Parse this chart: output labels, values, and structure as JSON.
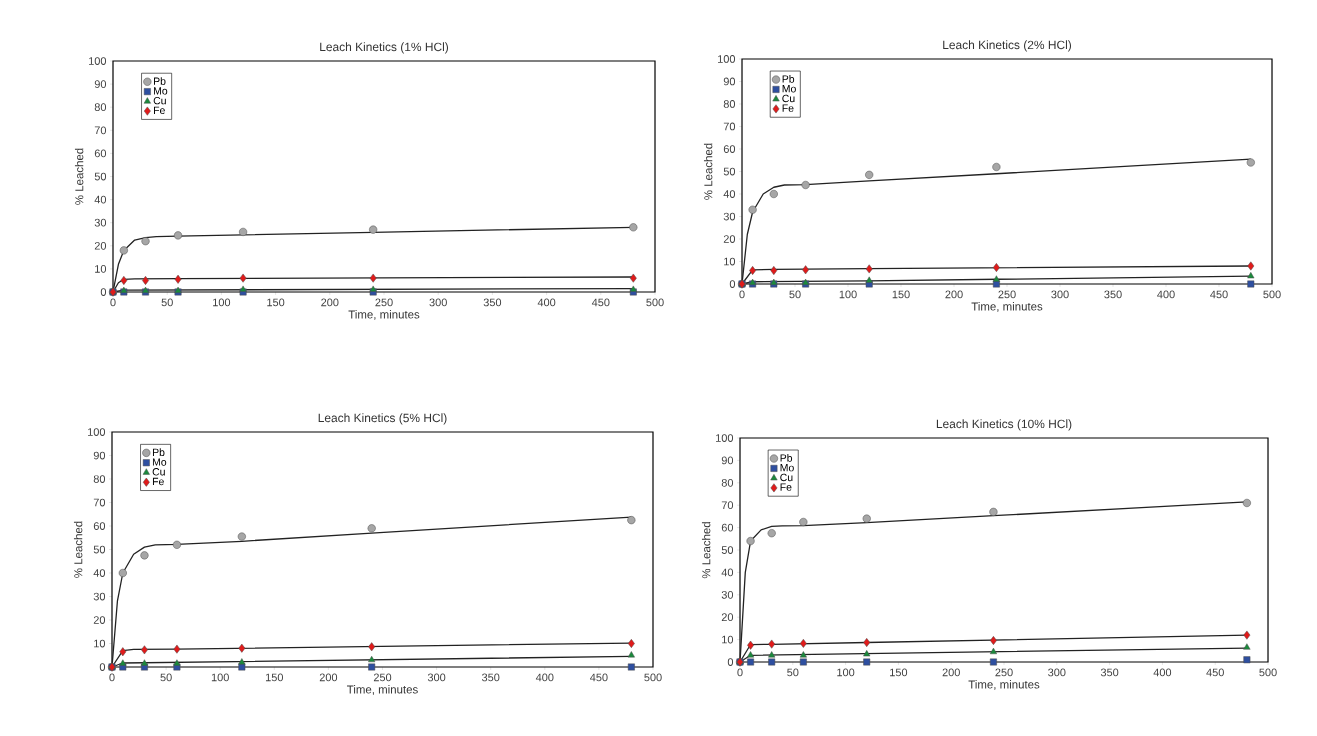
{
  "chart_data": [
    {
      "type": "scatter",
      "title": "Leach Kinetics (1% HCl)",
      "xlabel": "Time, minutes",
      "ylabel": "% Leached",
      "x": [
        0,
        10,
        30,
        60,
        120,
        240,
        480
      ],
      "xlim": [
        0,
        500
      ],
      "xticks": [
        0,
        50,
        100,
        150,
        200,
        250,
        300,
        350,
        400,
        450,
        500
      ],
      "ylim": [
        0,
        100
      ],
      "yticks": [
        0,
        10,
        20,
        30,
        40,
        50,
        60,
        70,
        80,
        90,
        100
      ],
      "legend": "top left",
      "series": [
        {
          "name": "Pb",
          "color": "#a6a6a6",
          "marker": "circle",
          "values": [
            0,
            18,
            22,
            24.5,
            26,
            27,
            28
          ]
        },
        {
          "name": "Mo",
          "color": "#2e4fa0",
          "marker": "square",
          "values": [
            0,
            0,
            0,
            0,
            0,
            0,
            0
          ]
        },
        {
          "name": "Cu",
          "color": "#1a8a3c",
          "marker": "triangle",
          "values": [
            0,
            0.5,
            0.5,
            0.5,
            1,
            1,
            1
          ]
        },
        {
          "name": "Fe",
          "color": "#e01b1b",
          "marker": "diamond",
          "values": [
            0,
            5,
            5,
            5.5,
            6,
            6,
            6
          ]
        },
        {
          "type": "line",
          "color": "#222222",
          "marker": "none",
          "x": [
            0,
            5,
            10,
            20,
            30,
            40,
            60,
            120,
            240,
            480
          ],
          "values": [
            0,
            12,
            18,
            22.5,
            23.5,
            24,
            24.2,
            24.7,
            25.8,
            28
          ]
        },
        {
          "type": "line",
          "color": "#222222",
          "marker": "none",
          "x": [
            0,
            5,
            10,
            20,
            60,
            480
          ],
          "values": [
            0,
            4,
            5.5,
            5.7,
            5.8,
            6.5
          ]
        },
        {
          "type": "line",
          "color": "#222222",
          "marker": "none",
          "x": [
            0,
            10,
            480
          ],
          "values": [
            0,
            0.8,
            1.5
          ]
        }
      ]
    },
    {
      "type": "scatter",
      "title": "Leach Kinetics (2% HCl)",
      "xlabel": "Time, minutes",
      "ylabel": "% Leached",
      "x": [
        0,
        10,
        30,
        60,
        120,
        240,
        480
      ],
      "xlim": [
        0,
        500
      ],
      "xticks": [
        0,
        50,
        100,
        150,
        200,
        250,
        300,
        350,
        400,
        450,
        500
      ],
      "ylim": [
        0,
        100
      ],
      "yticks": [
        0,
        10,
        20,
        30,
        40,
        50,
        60,
        70,
        80,
        90,
        100
      ],
      "legend": "top left",
      "series": [
        {
          "name": "Pb",
          "color": "#a6a6a6",
          "marker": "circle",
          "values": [
            0,
            33,
            40,
            44,
            48.5,
            52,
            54
          ]
        },
        {
          "name": "Mo",
          "color": "#2e4fa0",
          "marker": "square",
          "values": [
            0,
            0,
            0,
            0,
            0,
            0,
            0
          ]
        },
        {
          "name": "Cu",
          "color": "#1a8a3c",
          "marker": "triangle",
          "values": [
            0,
            0.5,
            0.5,
            0.5,
            1.5,
            2,
            3.5
          ]
        },
        {
          "name": "Fe",
          "color": "#e01b1b",
          "marker": "diamond",
          "values": [
            0,
            6,
            6,
            6.3,
            6.7,
            7.3,
            8
          ]
        },
        {
          "type": "line",
          "color": "#222222",
          "marker": "none",
          "x": [
            0,
            5,
            10,
            20,
            30,
            40,
            60,
            120,
            240,
            480
          ],
          "values": [
            0,
            22,
            32,
            40,
            43,
            44,
            44.2,
            45.8,
            49,
            55.5
          ]
        },
        {
          "type": "line",
          "color": "#222222",
          "marker": "none",
          "x": [
            0,
            10,
            30,
            120,
            480
          ],
          "values": [
            0,
            6.3,
            6.5,
            6.8,
            8
          ]
        },
        {
          "type": "line",
          "color": "#222222",
          "marker": "none",
          "x": [
            0,
            10,
            120,
            480
          ],
          "values": [
            0,
            1,
            1.4,
            3.5
          ]
        }
      ]
    },
    {
      "type": "scatter",
      "title": "Leach Kinetics (5% HCl)",
      "xlabel": "Time, minutes",
      "ylabel": "% Leached",
      "x": [
        0,
        10,
        30,
        60,
        120,
        240,
        480
      ],
      "xlim": [
        0,
        500
      ],
      "xticks": [
        0,
        50,
        100,
        150,
        200,
        250,
        300,
        350,
        400,
        450,
        500
      ],
      "ylim": [
        0,
        100
      ],
      "yticks": [
        0,
        10,
        20,
        30,
        40,
        50,
        60,
        70,
        80,
        90,
        100
      ],
      "legend": "top left",
      "series": [
        {
          "name": "Pb",
          "color": "#a6a6a6",
          "marker": "circle",
          "values": [
            0,
            40,
            47.5,
            52,
            55.5,
            59,
            62.5
          ]
        },
        {
          "name": "Mo",
          "color": "#2e4fa0",
          "marker": "square",
          "values": [
            0,
            0,
            0,
            0,
            0,
            0,
            0
          ]
        },
        {
          "name": "Cu",
          "color": "#1a8a3c",
          "marker": "triangle",
          "values": [
            0,
            1.5,
            1.5,
            1.5,
            2,
            3,
            5
          ]
        },
        {
          "name": "Fe",
          "color": "#e01b1b",
          "marker": "diamond",
          "values": [
            0,
            6.5,
            7.3,
            7.6,
            8,
            8.6,
            10
          ]
        },
        {
          "type": "line",
          "color": "#222222",
          "marker": "none",
          "x": [
            0,
            5,
            10,
            20,
            30,
            40,
            60,
            120,
            240,
            480
          ],
          "values": [
            0,
            28,
            40,
            48,
            51,
            52,
            52.2,
            53.5,
            57,
            63.8
          ]
        },
        {
          "type": "line",
          "color": "#222222",
          "marker": "none",
          "x": [
            0,
            10,
            20,
            60,
            480
          ],
          "values": [
            0,
            7,
            7.5,
            7.6,
            10.2
          ]
        },
        {
          "type": "line",
          "color": "#222222",
          "marker": "none",
          "x": [
            0,
            10,
            480
          ],
          "values": [
            0,
            1.7,
            4.5
          ]
        }
      ]
    },
    {
      "type": "scatter",
      "title": "Leach Kinetics (10% HCl)",
      "xlabel": "Time, minutes",
      "ylabel": "% Leached",
      "x": [
        0,
        10,
        30,
        60,
        120,
        240,
        480
      ],
      "xlim": [
        0,
        500
      ],
      "xticks": [
        0,
        50,
        100,
        150,
        200,
        250,
        300,
        350,
        400,
        450,
        500
      ],
      "ylim": [
        0,
        100
      ],
      "yticks": [
        0,
        10,
        20,
        30,
        40,
        50,
        60,
        70,
        80,
        90,
        100
      ],
      "legend": "top left",
      "series": [
        {
          "name": "Pb",
          "color": "#a6a6a6",
          "marker": "circle",
          "values": [
            0,
            54,
            57.5,
            62.5,
            64,
            67,
            71
          ]
        },
        {
          "name": "Mo",
          "color": "#2e4fa0",
          "marker": "square",
          "values": [
            0,
            0,
            0,
            0,
            0,
            0,
            1
          ]
        },
        {
          "name": "Cu",
          "color": "#1a8a3c",
          "marker": "triangle",
          "values": [
            0,
            3,
            3,
            3,
            3.5,
            4.5,
            6.5
          ]
        },
        {
          "name": "Fe",
          "color": "#e01b1b",
          "marker": "diamond",
          "values": [
            0,
            7.5,
            8,
            8.3,
            8.7,
            9.6,
            12
          ]
        },
        {
          "type": "line",
          "color": "#222222",
          "marker": "none",
          "x": [
            0,
            5,
            10,
            20,
            30,
            40,
            60,
            120,
            240,
            480
          ],
          "values": [
            0,
            40,
            54,
            59,
            60.5,
            60.8,
            60.9,
            62.2,
            65.3,
            71.5
          ]
        },
        {
          "type": "line",
          "color": "#222222",
          "marker": "none",
          "x": [
            0,
            10,
            30,
            120,
            480
          ],
          "values": [
            0,
            7.8,
            7.9,
            8.7,
            12
          ]
        },
        {
          "type": "line",
          "color": "#222222",
          "marker": "none",
          "x": [
            0,
            10,
            480
          ],
          "values": [
            0,
            3,
            6.2
          ]
        }
      ]
    }
  ]
}
